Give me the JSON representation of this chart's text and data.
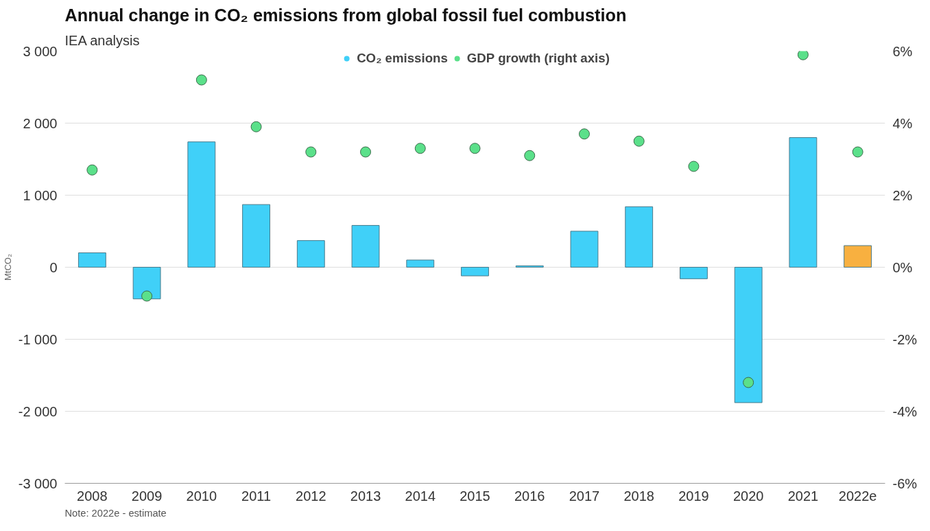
{
  "chart_data": {
    "type": "bar",
    "title": "Annual change in CO₂ emissions from global fossil fuel combustion",
    "subtitle": "IEA analysis",
    "ylabel": "MtCO₂",
    "categories": [
      "2008",
      "2009",
      "2010",
      "2011",
      "2012",
      "2013",
      "2014",
      "2015",
      "2016",
      "2017",
      "2018",
      "2019",
      "2020",
      "2021",
      "2022e"
    ],
    "series": [
      {
        "name": "CO₂ emissions",
        "color": "#40d0f8",
        "colors": [
          "#40d0f8",
          "#40d0f8",
          "#40d0f8",
          "#40d0f8",
          "#40d0f8",
          "#40d0f8",
          "#40d0f8",
          "#40d0f8",
          "#40d0f8",
          "#40d0f8",
          "#40d0f8",
          "#40d0f8",
          "#40d0f8",
          "#40d0f8",
          "#f8b040"
        ],
        "values": [
          200,
          -440,
          1740,
          870,
          370,
          580,
          100,
          -120,
          20,
          500,
          840,
          -160,
          -1880,
          1800,
          300
        ]
      },
      {
        "name": "GDP growth (right axis)",
        "type": "scatter",
        "axis": "y2",
        "color": "#5be08a",
        "values": [
          2.7,
          -0.8,
          5.2,
          3.9,
          3.2,
          3.2,
          3.3,
          3.3,
          3.1,
          3.7,
          3.5,
          2.8,
          -3.2,
          5.9,
          3.2
        ]
      }
    ],
    "ylim": [
      -3000,
      3000
    ],
    "yticks": [
      {
        "value": -3000,
        "label": "-3 000"
      },
      {
        "value": -2000,
        "label": "-2 000"
      },
      {
        "value": -1000,
        "label": "-1 000"
      },
      0,
      {
        "value": 1000,
        "label": "1 000"
      },
      {
        "value": 2000,
        "label": "2 000"
      },
      {
        "value": 3000,
        "label": "3 000"
      }
    ],
    "y2lim": [
      -6,
      6
    ],
    "y2ticks": [
      {
        "value": -6,
        "label": "-6%"
      },
      {
        "value": -4,
        "label": "-4%"
      },
      {
        "value": -2,
        "label": "-2%"
      },
      {
        "value": 0,
        "label": "0%"
      },
      {
        "value": 2,
        "label": "2%"
      },
      {
        "value": 4,
        "label": "4%"
      },
      {
        "value": 6,
        "label": "6%"
      }
    ],
    "grid": "y",
    "legend": "top",
    "marker": "circle",
    "annotations": [
      "Note: 2022e - estimate"
    ]
  }
}
